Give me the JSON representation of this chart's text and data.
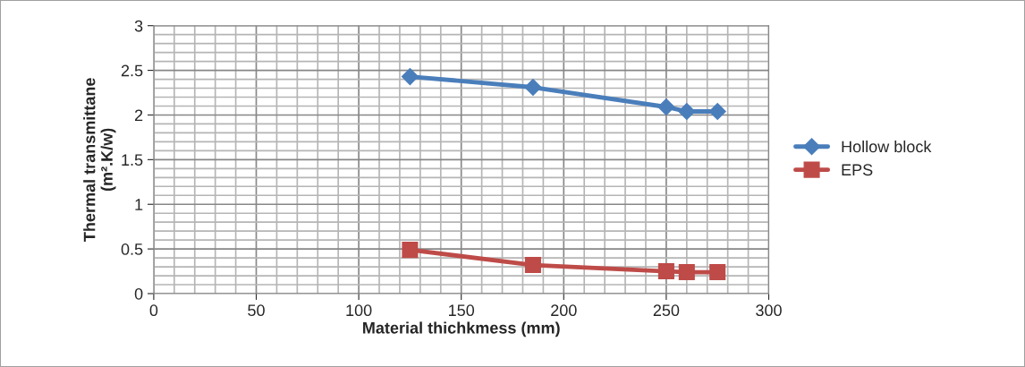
{
  "chart_data": {
    "type": "line",
    "xlabel": "Material thichkmess (mm)",
    "ylabel": "Thermal transmittane\n(m².K/w)",
    "series": [
      {
        "name": "Hollow block",
        "color": "#4a7ebb",
        "marker": "diamond",
        "x": [
          125,
          185,
          250,
          260,
          275
        ],
        "values": [
          2.43,
          2.31,
          2.09,
          2.04,
          2.04
        ]
      },
      {
        "name": "EPS",
        "color": "#be4b48",
        "marker": "square",
        "x": [
          125,
          185,
          250,
          260,
          275
        ],
        "values": [
          0.49,
          0.32,
          0.25,
          0.24,
          0.24
        ]
      }
    ],
    "xlim": [
      0,
      300
    ],
    "xticks": [
      0,
      50,
      100,
      150,
      200,
      250,
      300
    ],
    "ylim": [
      0,
      3
    ],
    "yticks": [
      0,
      0.5,
      1,
      1.5,
      2,
      2.5,
      3
    ],
    "grid": true,
    "legend": "right",
    "line_style": "solid"
  }
}
